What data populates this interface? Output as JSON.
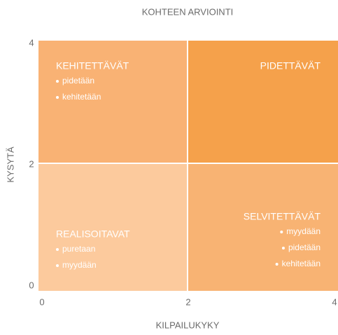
{
  "title": "KOHTEEN ARVIOINTI",
  "x_axis": {
    "label": "KILPAILUKYKY",
    "ticks": [
      0,
      2,
      4
    ]
  },
  "y_axis": {
    "label": "KYSYTÄ",
    "ticks": [
      0,
      2,
      4
    ]
  },
  "quadrants": [
    {
      "title": "KEHITETTÄVÄT",
      "items": [
        "pidetään",
        "kehitetään"
      ]
    },
    {
      "title": "PIDETTÄVÄT",
      "items": []
    },
    {
      "title": "REALISOITAVAT",
      "items": [
        "puretaan",
        "myydään"
      ]
    },
    {
      "title": "SELVITETTÄVÄT",
      "items": [
        "myydään",
        "pidetään",
        "kehitetään"
      ]
    }
  ]
}
